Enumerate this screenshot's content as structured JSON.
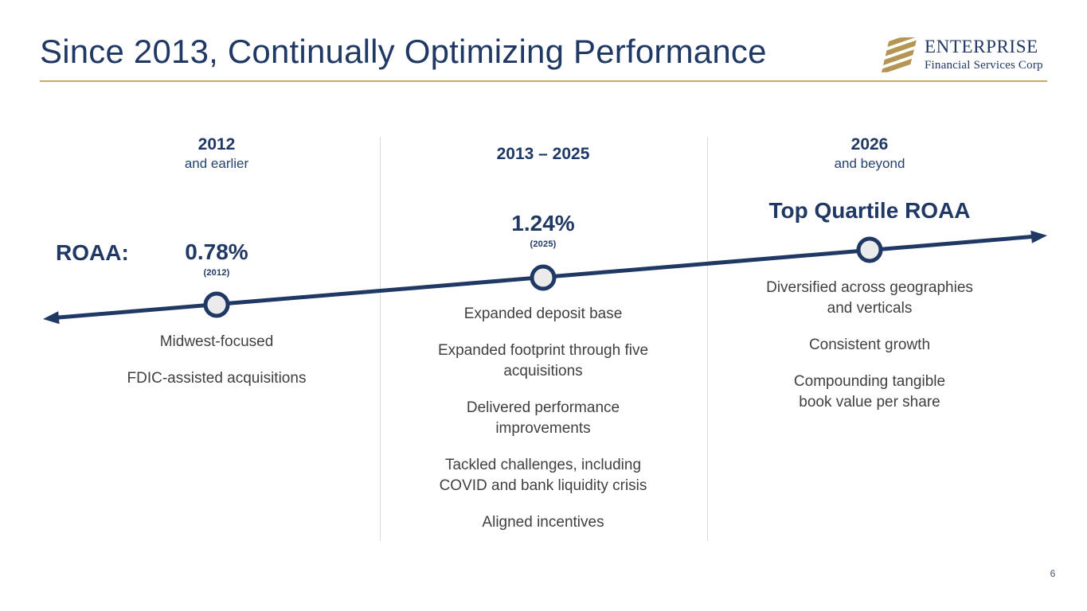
{
  "slide": {
    "title": "Since 2013, Continually Optimizing Performance",
    "logo": {
      "name": "ENTERPRISE",
      "subtitle": "Financial Services Corp",
      "icon": "gold-diagonal-stripes"
    },
    "roaa_label": "ROAA:",
    "page_number": "6",
    "colors": {
      "navy": "#1f3864",
      "gold_rule": "#c9ab5e",
      "logo_gold": "#b49554",
      "body_text": "#404040",
      "divider": "#d9d9d9",
      "marker_fill": "#ebebeb"
    },
    "timeline": {
      "type": "ascending-arrow",
      "markers": 3,
      "direction": "left-to-right rising"
    },
    "columns": [
      {
        "period": "2012",
        "period_sub": "and earlier",
        "metric": "0.78%",
        "metric_note": "(2012)",
        "bullets": [
          "Midwest-focused",
          "FDIC-assisted acquisitions"
        ]
      },
      {
        "period": "2013 – 2025",
        "period_sub": "",
        "metric": "1.24%",
        "metric_note": "(2025)",
        "bullets": [
          "Expanded deposit base",
          "Expanded footprint through five\nacquisitions",
          "Delivered performance\nimprovements",
          "Tackled challenges, including\nCOVID and bank liquidity crisis",
          "Aligned incentives"
        ]
      },
      {
        "period": "2026",
        "period_sub": "and beyond",
        "metric": "Top Quartile ROAA",
        "metric_note": "",
        "bullets": [
          "Diversified across geographies\nand verticals",
          "Consistent growth",
          "Compounding tangible\nbook value per share"
        ]
      }
    ]
  }
}
